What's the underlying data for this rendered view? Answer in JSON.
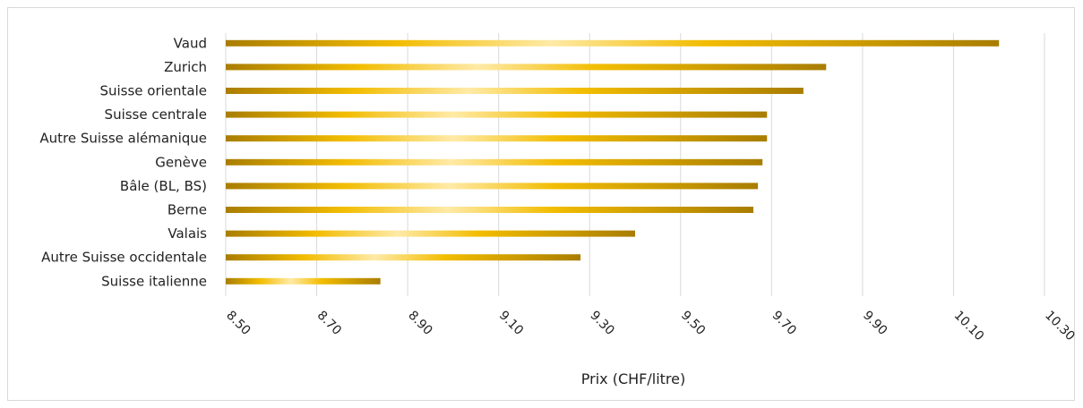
{
  "chart_data": {
    "type": "bar",
    "orientation": "horizontal",
    "categories": [
      "Vaud",
      "Zurich",
      "Suisse orientale",
      "Suisse centrale",
      "Autre Suisse alémanique",
      "Genève",
      "Bâle (BL, BS)",
      "Berne",
      "Valais",
      "Autre Suisse occidentale",
      "Suisse italienne"
    ],
    "values": [
      10.2,
      9.82,
      9.77,
      9.69,
      9.69,
      9.68,
      9.67,
      9.66,
      9.4,
      9.28,
      8.84
    ],
    "xlabel": "Prix (CHF/litre)",
    "ylabel": "",
    "xlim": [
      8.5,
      10.3
    ],
    "xticks": [
      "8.50",
      "8.70",
      "8.90",
      "9.10",
      "9.30",
      "9.50",
      "9.70",
      "9.90",
      "10.10",
      "10.30"
    ],
    "grid": "vertical",
    "colors": {
      "gold_dark": "#a97d00",
      "gold_mid": "#f2bc00",
      "gold_light": "#ffeaa6"
    }
  }
}
